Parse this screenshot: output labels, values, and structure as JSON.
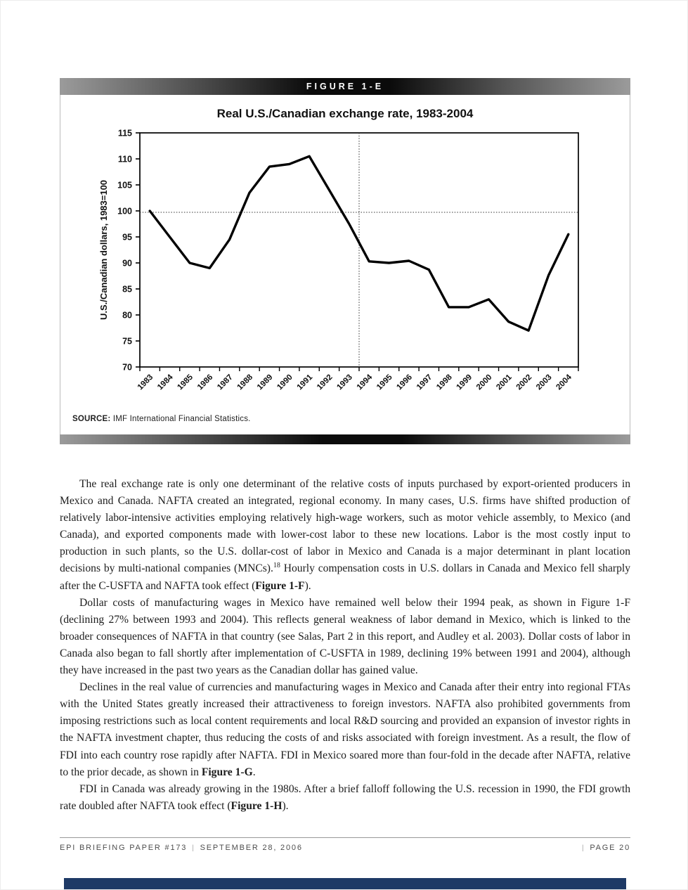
{
  "figure": {
    "header_label": "FIGURE 1-E",
    "chart_title": "Real U.S./Canadian exchange rate, 1983-2004",
    "source_label": "SOURCE:",
    "source_text": " IMF International Financial Statistics."
  },
  "chart_data": {
    "type": "line",
    "title": "Real U.S./Canadian exchange rate, 1983-2004",
    "x": [
      1983,
      1984,
      1985,
      1986,
      1987,
      1988,
      1989,
      1990,
      1991,
      1992,
      1993,
      1994,
      1995,
      1996,
      1997,
      1998,
      1999,
      2000,
      2001,
      2002,
      2003,
      2004
    ],
    "values": [
      100,
      95,
      90,
      89,
      94.5,
      103.5,
      108.5,
      109,
      110.5,
      104,
      97.5,
      90.3,
      90,
      90.4,
      88.7,
      81.5,
      81.5,
      83,
      78.7,
      77,
      87.6,
      95.5
    ],
    "xlabel": "",
    "ylabel": "U.S./Canadian dollars, 1983=100",
    "ylim": [
      70,
      115
    ],
    "ytick_step": 5,
    "grid": "off",
    "legend": "none",
    "reference_lines": {
      "horizontal_dotted_at_y": 100,
      "vertical_dotted_before_year": 1994
    }
  },
  "body": {
    "paragraphs": [
      [
        {
          "t": "The real exchange rate is only one determinant of the relative costs of inputs purchased by export-oriented producers in Mexico and Canada. NAFTA created an integrated, regional economy. In many cases, U.S. firms have shifted production of relatively labor-intensive activities employing relatively high-wage workers, such as motor vehicle assembly, to Mexico (and Canada), and exported components made with lower-cost labor to these new locations. Labor is the most costly input to production in such plants, so the U.S. dollar-cost of labor in Mexico and Canada is a major determinant in plant location decisions by multi-national companies (MNCs)."
        },
        {
          "t": "18",
          "sup": true
        },
        {
          "t": " Hourly compensation costs in U.S. dollars in Canada and Mexico fell sharply after the C-USFTA and NAFTA took effect ("
        },
        {
          "t": "Figure 1-F",
          "b": true
        },
        {
          "t": ")."
        }
      ],
      [
        {
          "t": "Dollar costs of manufacturing wages in Mexico have remained well below their 1994 peak, as shown in Figure 1-F (declining 27% between 1993 and 2004). This reflects general weakness of labor demand in Mexico, which is linked to the broader consequences of NAFTA in that country (see Salas, Part 2 in this report, and Audley et al. 2003). Dollar costs of labor in Canada also began to fall shortly after implementation of C-USFTA in 1989, declining 19% between 1991 and 2004), although they have increased in the past two years as the Canadian dollar has gained value."
        }
      ],
      [
        {
          "t": "Declines in the real value of currencies and manufacturing wages in Mexico and Canada after their entry into regional FTAs with the United States greatly increased their attractiveness to foreign investors. NAFTA also prohibited governments from imposing restrictions such as local content requirements and local R&D sourcing and provided an expansion of investor rights in the NAFTA investment chapter, thus reducing the costs of and risks associated with foreign investment. As a result, the flow of FDI into each country rose rapidly after NAFTA. FDI in Mexico soared more than four-fold in the decade after NAFTA, relative to the prior decade, as shown in "
        },
        {
          "t": "Figure 1-G",
          "b": true
        },
        {
          "t": "."
        }
      ],
      [
        {
          "t": "FDI in Canada was already growing in the 1980s. After a brief falloff following the U.S. recession in 1990, the FDI growth rate doubled after NAFTA took effect ("
        },
        {
          "t": "Figure 1-H",
          "b": true
        },
        {
          "t": ")."
        }
      ]
    ]
  },
  "footer": {
    "paper_id": "EPI BRIEFING PAPER #173",
    "date": "SEPTEMBER 28, 2006",
    "page": "PAGE 20",
    "separator": "|"
  },
  "colors": {
    "navy_footer_bar": "#1e3a66",
    "bar_gradient_center": "#0b0b0b",
    "bar_gradient_edge": "#9b9b9b",
    "line": "#000000",
    "footer_text": "#4d4d4d",
    "body_text": "#1c1c1c"
  }
}
